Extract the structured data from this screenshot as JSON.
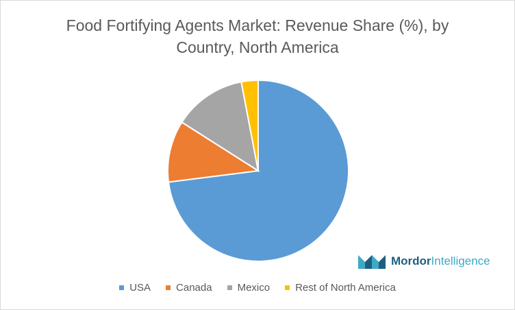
{
  "chart_data": {
    "type": "pie",
    "title": "Food Fortifying Agents Market: Revenue Share (%), by Country, North America",
    "categories": [
      "USA",
      "Canada",
      "Mexico",
      "Rest of North America"
    ],
    "values": [
      73,
      11,
      13,
      3
    ],
    "colors": [
      "#5b9bd5",
      "#ed7d31",
      "#a5a5a5",
      "#ffc000"
    ],
    "legend": "bottom"
  },
  "watermark": {
    "brand": "Mordor",
    "suffix": "Intelligence"
  }
}
